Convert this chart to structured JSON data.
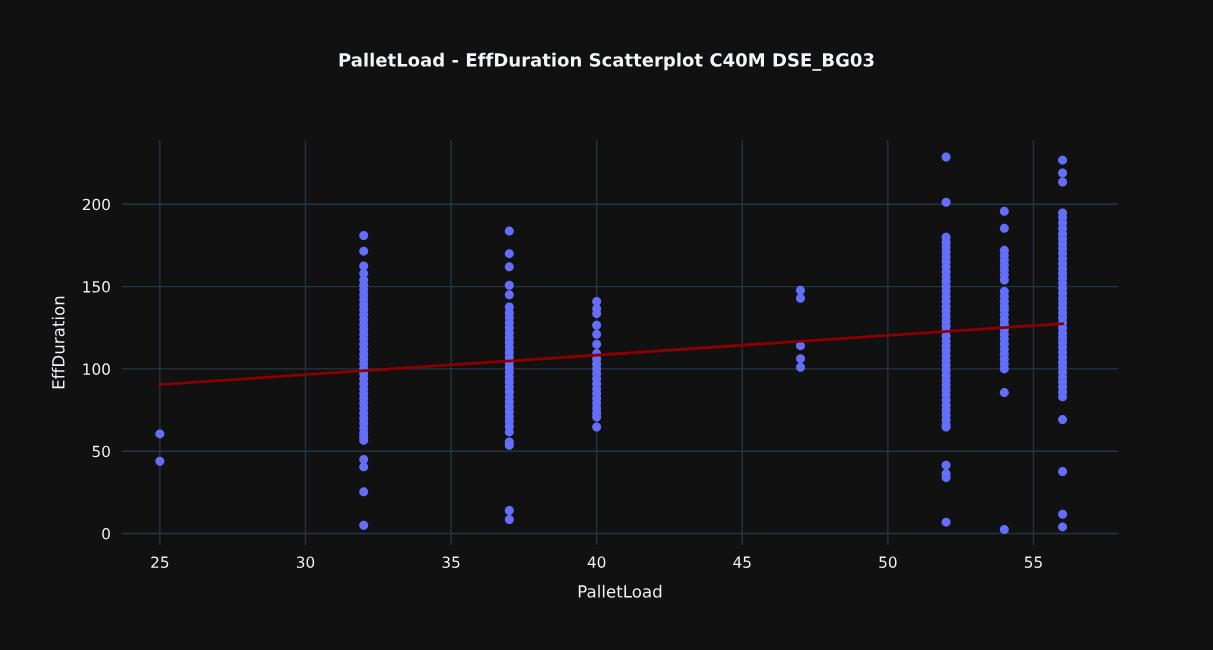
{
  "chart_data": {
    "type": "scatter",
    "title": "PalletLoad - EffDuration Scatterplot C40M DSE_BG03",
    "xlabel": "PalletLoad",
    "ylabel": "EffDuration",
    "xlim": [
      23.7,
      57.9
    ],
    "ylim": [
      -7,
      239
    ],
    "xticks": [
      25,
      30,
      35,
      40,
      45,
      50,
      55
    ],
    "yticks": [
      0,
      50,
      100,
      150,
      200
    ],
    "grid": true,
    "series": [
      {
        "color": "#636efa",
        "marker": "circle",
        "x": [
          25,
          25,
          32,
          32,
          32,
          32,
          32,
          32,
          32,
          32,
          32,
          32,
          32,
          32,
          32,
          32,
          32,
          32,
          32,
          32,
          32,
          32,
          32,
          32,
          32,
          32,
          32,
          32,
          32,
          32,
          32,
          32,
          32,
          32,
          32,
          32,
          32,
          32,
          32,
          32,
          32,
          32,
          32,
          32,
          37,
          37,
          37,
          37,
          37,
          37,
          37,
          37,
          37,
          37,
          37,
          37,
          37,
          37,
          37,
          37,
          37,
          37,
          37,
          37,
          37,
          37,
          37,
          37,
          37,
          37,
          37,
          37,
          37,
          37,
          37,
          37,
          37,
          37,
          37,
          40,
          40,
          40,
          40,
          40,
          40,
          40,
          40,
          40,
          40,
          40,
          40,
          40,
          40,
          40,
          40,
          40,
          40,
          40,
          40,
          40,
          47,
          47,
          47,
          47,
          47,
          52,
          52,
          52,
          52,
          52,
          52,
          52,
          52,
          52,
          52,
          52,
          52,
          52,
          52,
          52,
          52,
          52,
          52,
          52,
          52,
          52,
          52,
          52,
          52,
          52,
          52,
          52,
          52,
          52,
          52,
          52,
          52,
          52,
          52,
          52,
          52,
          52,
          52,
          52,
          52,
          52,
          52,
          52,
          52,
          52,
          52,
          54,
          54,
          54,
          54,
          54,
          54,
          54,
          54,
          54,
          54,
          54,
          54,
          54,
          54,
          54,
          54,
          54,
          54,
          54,
          54,
          54,
          54,
          54,
          54,
          54,
          54,
          54,
          54,
          56,
          56,
          56,
          56,
          56,
          56,
          56,
          56,
          56,
          56,
          56,
          56,
          56,
          56,
          56,
          56,
          56,
          56,
          56,
          56,
          56,
          56,
          56,
          56,
          56,
          56,
          56,
          56,
          56,
          56,
          56,
          56,
          56,
          56,
          56,
          56,
          56,
          56,
          56,
          56,
          56,
          56,
          56,
          56,
          56
        ],
        "values": [
          60.5,
          43.9,
          181,
          171.5,
          162.5,
          158,
          154,
          151,
          148,
          145,
          142,
          139,
          136,
          133,
          130,
          127,
          124,
          121,
          118,
          115,
          112,
          109,
          106,
          103,
          100,
          97,
          94,
          91,
          88,
          85,
          82,
          79,
          76,
          73,
          70,
          67,
          64,
          61,
          58.6,
          56.6,
          45,
          40.5,
          25.3,
          5,
          183.7,
          170,
          162,
          150.8,
          145,
          137.6,
          134,
          131,
          128,
          125,
          122,
          119,
          116,
          113,
          110,
          107,
          104,
          101,
          98,
          95,
          92,
          89,
          86,
          83,
          80,
          77,
          74,
          71,
          68,
          65,
          61.7,
          55.6,
          53.6,
          14,
          8.5,
          141,
          136.6,
          133.6,
          126.5,
          121,
          115,
          109.3,
          106,
          103,
          100,
          97,
          94,
          91,
          88,
          85,
          82,
          79,
          76,
          73,
          70.8,
          64.7,
          147.7,
          142.9,
          114.1,
          106.2,
          101,
          228.7,
          201.2,
          180,
          177,
          174,
          171,
          168,
          165,
          162,
          159,
          156,
          153,
          150,
          147,
          144,
          141,
          138,
          135,
          132,
          129,
          126,
          123,
          120,
          117,
          114,
          111,
          108,
          105,
          102,
          99,
          96,
          93,
          90,
          87,
          84,
          81,
          78,
          75,
          72,
          69,
          66,
          64.7,
          41.5,
          36.4,
          34,
          6.9,
          195.7,
          185.4,
          172,
          169,
          166,
          163,
          160,
          157,
          154,
          147,
          144,
          141,
          138,
          136,
          133,
          130,
          127,
          124,
          121,
          118,
          115,
          112,
          109,
          106,
          103,
          100,
          85.6,
          2.4,
          226.8,
          219,
          213.5,
          194.7,
          191.9,
          188.6,
          185.3,
          182,
          179,
          176,
          173,
          170,
          167,
          164,
          161,
          158,
          155,
          152,
          149,
          146,
          143,
          140,
          137,
          134,
          131,
          128,
          125,
          122,
          119,
          116,
          113,
          110,
          107,
          104,
          101,
          98,
          95,
          92,
          89,
          86,
          83,
          69.2,
          37.6,
          11.7,
          4
        ]
      },
      {
        "type": "line",
        "color": "#8b0000",
        "x": [
          25,
          56
        ],
        "values": [
          90.5,
          127.5
        ]
      }
    ]
  }
}
